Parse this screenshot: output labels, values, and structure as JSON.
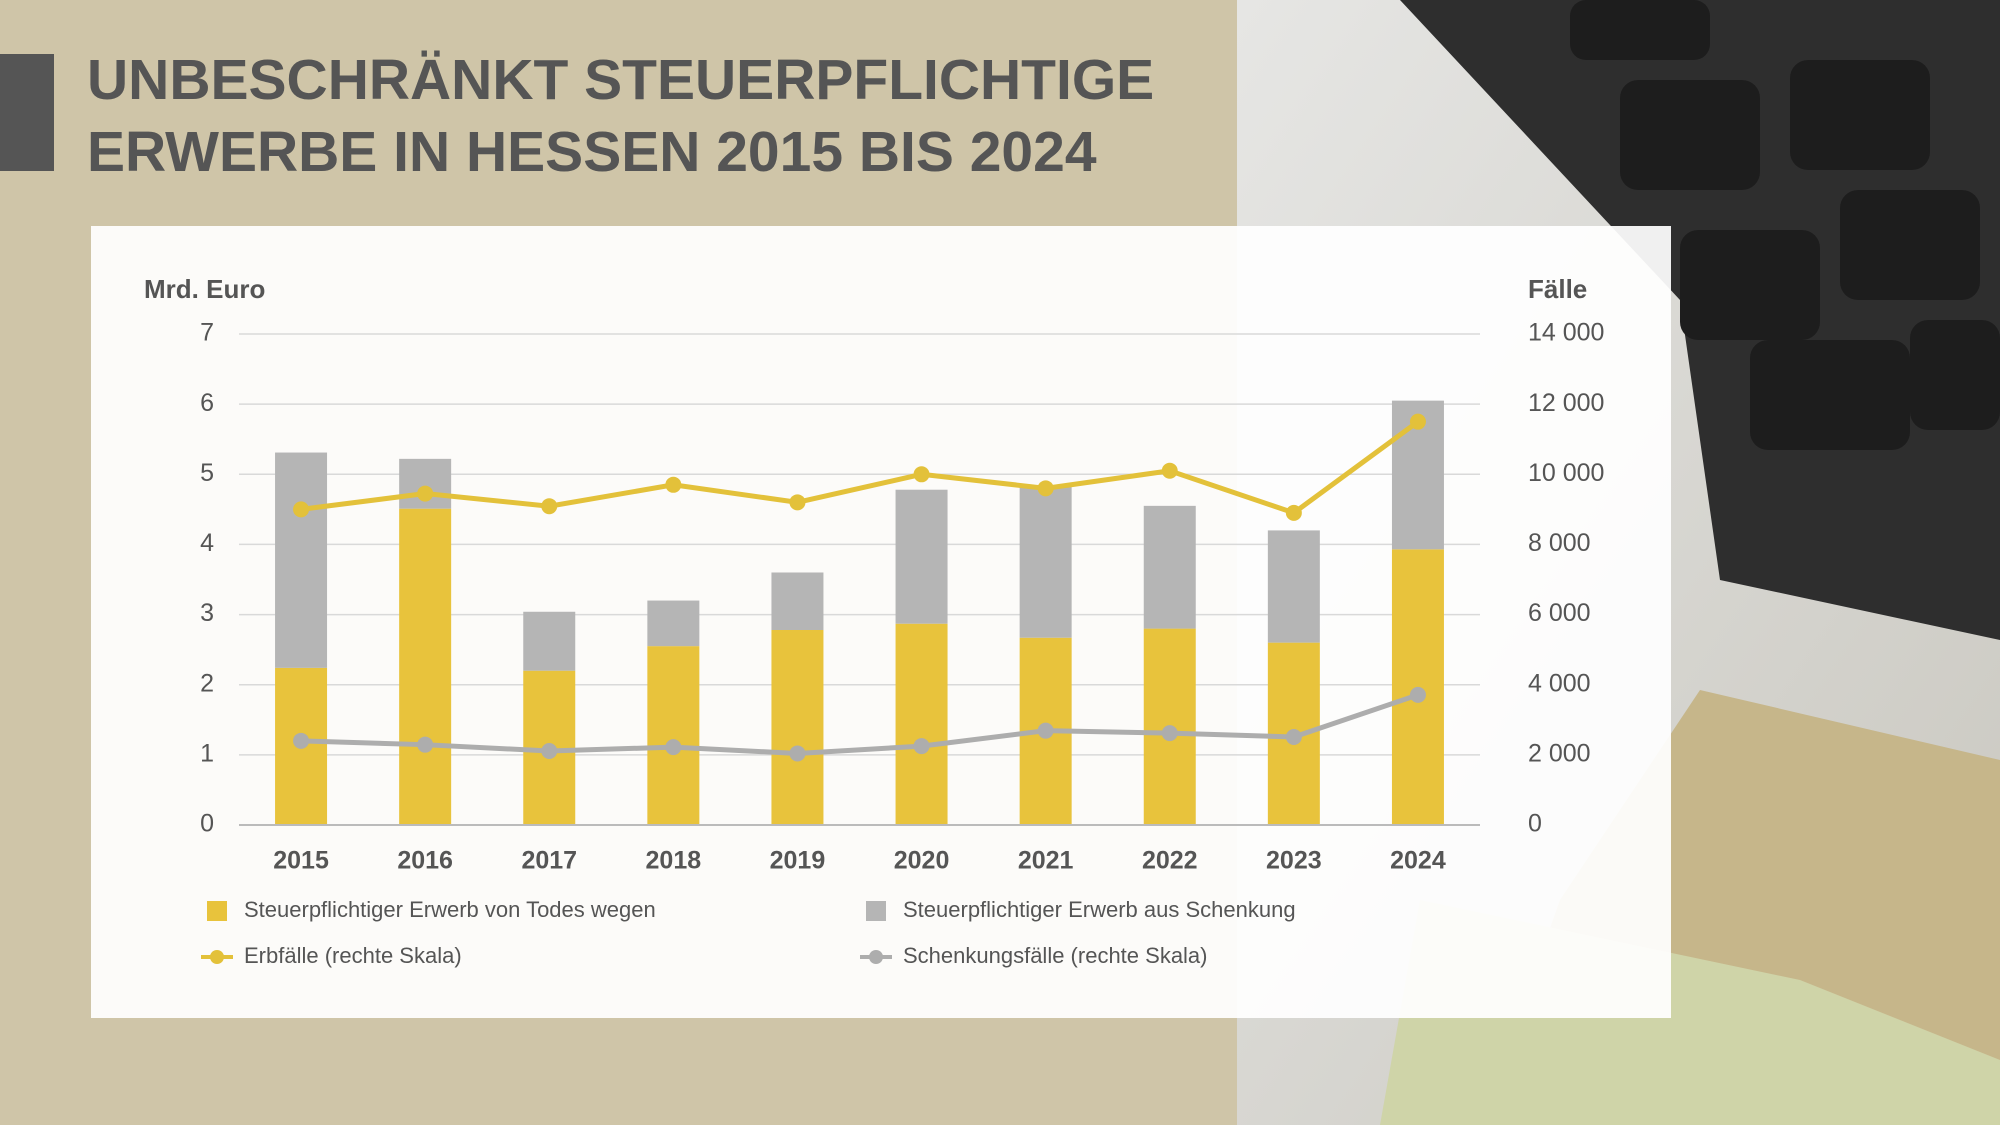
{
  "chart_data": {
    "type": "bar",
    "stacked": true,
    "title": [
      "UNBESCHRÄNKT STEUERPFLICHTIGE",
      "ERWERBE IN HESSEN 2015 BIS 2024"
    ],
    "y_label": "Mrd. Euro",
    "y2_label": "Fälle",
    "categories": [
      "2015",
      "2016",
      "2017",
      "2018",
      "2019",
      "2020",
      "2021",
      "2022",
      "2023",
      "2024"
    ],
    "series": [
      {
        "name": "Steuerpflichtiger Erwerb von Todes wegen",
        "type": "bar",
        "color": "#e8c33c",
        "values": [
          2.24,
          4.51,
          2.2,
          2.55,
          2.78,
          2.87,
          2.67,
          2.8,
          2.6,
          3.93
        ]
      },
      {
        "name": "Steuerpflichtiger Erwerb aus Schenkung",
        "type": "bar",
        "color": "#b5b5b5",
        "values": [
          3.07,
          0.71,
          0.84,
          0.65,
          0.82,
          1.91,
          2.17,
          1.75,
          1.6,
          2.12
        ]
      },
      {
        "name": "Erbfälle (rechte Skala)",
        "type": "line",
        "axis": "y2",
        "color": "#e3c13a",
        "values": [
          9000,
          9450,
          9090,
          9700,
          9200,
          10000,
          9600,
          10100,
          8900,
          11500
        ]
      },
      {
        "name": "Schenkungsfälle (rechte Skala)",
        "type": "line",
        "axis": "y2",
        "color": "#adadad",
        "values": [
          2400,
          2290,
          2110,
          2220,
          2040,
          2250,
          2690,
          2620,
          2510,
          3710
        ]
      }
    ],
    "ylim": [
      0,
      7
    ],
    "yticks": [
      0,
      1,
      2,
      3,
      4,
      5,
      6,
      7
    ],
    "y2lim": [
      0,
      14000
    ],
    "y2ticks": [
      0,
      {
        "value": 2000,
        "label": "2 000"
      },
      {
        "value": 4000,
        "label": "4 000"
      },
      {
        "value": 6000,
        "label": "6 000"
      },
      {
        "value": 8000,
        "label": "8 000"
      },
      {
        "value": 10000,
        "label": "10 000"
      },
      {
        "value": 12000,
        "label": "12 000"
      },
      {
        "value": 14000,
        "label": "14 000"
      }
    ],
    "grid": true
  }
}
